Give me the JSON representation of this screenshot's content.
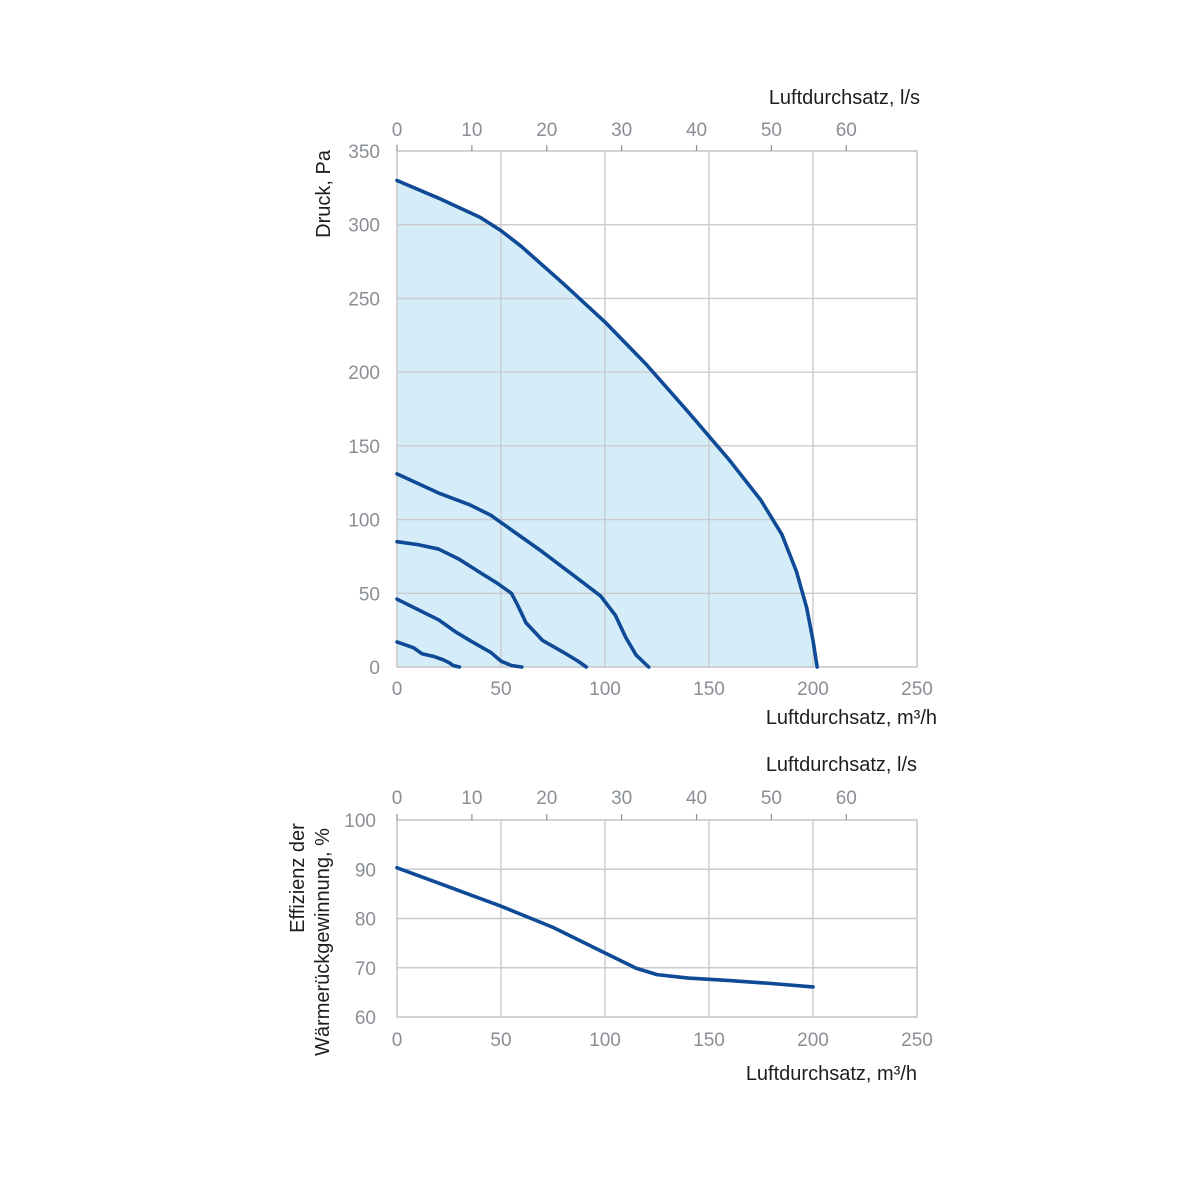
{
  "colors": {
    "curve": "#0f4a96",
    "area": "#d5edf9",
    "grid": "#c9cbce",
    "tick_text": "#8a8f96",
    "label_text": "#1e1e1e"
  },
  "chart_data": [
    {
      "type": "line",
      "title": "",
      "xlabel": "Luftdurchsatz, m³/h",
      "x2label": "Luftdurchsatz, l/s",
      "ylabel": "Druck, Pa",
      "xlim": [
        0,
        250
      ],
      "ylim": [
        0,
        350
      ],
      "x2lim": [
        0,
        69.444
      ],
      "xticks": [
        0,
        50,
        100,
        150,
        200,
        250
      ],
      "x2ticks": [
        0,
        10,
        20,
        30,
        40,
        50,
        60
      ],
      "yticks": [
        0,
        50,
        100,
        150,
        200,
        250,
        300,
        350
      ],
      "grid": true,
      "filled_series": 0,
      "series": [
        {
          "points": [
            [
              0,
              330
            ],
            [
              20,
              318
            ],
            [
              40,
              305
            ],
            [
              50,
              296
            ],
            [
              60,
              285
            ],
            [
              80,
              260
            ],
            [
              100,
              234
            ],
            [
              120,
              205
            ],
            [
              140,
              173
            ],
            [
              160,
              140
            ],
            [
              175,
              113
            ],
            [
              185,
              90
            ],
            [
              192,
              65
            ],
            [
              197,
              40
            ],
            [
              200,
              18
            ],
            [
              202,
              0
            ]
          ]
        },
        {
          "points": [
            [
              0,
              131
            ],
            [
              20,
              118
            ],
            [
              35,
              110
            ],
            [
              45,
              103
            ],
            [
              55,
              93
            ],
            [
              70,
              78
            ],
            [
              85,
              62
            ],
            [
              98,
              48
            ],
            [
              105,
              35
            ],
            [
              110,
              20
            ],
            [
              115,
              8
            ],
            [
              121,
              0
            ]
          ]
        },
        {
          "points": [
            [
              0,
              85
            ],
            [
              10,
              83
            ],
            [
              20,
              80
            ],
            [
              30,
              73
            ],
            [
              40,
              64
            ],
            [
              48,
              57
            ],
            [
              55,
              50
            ],
            [
              58,
              42
            ],
            [
              62,
              30
            ],
            [
              70,
              18
            ],
            [
              80,
              10
            ],
            [
              87,
              4
            ],
            [
              91,
              0
            ]
          ]
        },
        {
          "points": [
            [
              0,
              46
            ],
            [
              10,
              39
            ],
            [
              20,
              32
            ],
            [
              28,
              24
            ],
            [
              35,
              18
            ],
            [
              45,
              10
            ],
            [
              50,
              4
            ],
            [
              55,
              1
            ],
            [
              60,
              0
            ]
          ]
        },
        {
          "points": [
            [
              0,
              17
            ],
            [
              8,
              13
            ],
            [
              12,
              9
            ],
            [
              18,
              7
            ],
            [
              22,
              5
            ],
            [
              25,
              3
            ],
            [
              27,
              1
            ],
            [
              30,
              0
            ]
          ]
        }
      ]
    },
    {
      "type": "line",
      "title": "",
      "xlabel": "Luftdurchsatz, m³/h",
      "x2label": "Luftdurchsatz, l/s",
      "ylabel_lines": [
        "Effizienz der",
        "Wärmerückgewinnung, %"
      ],
      "xlim": [
        0,
        250
      ],
      "ylim": [
        60,
        100
      ],
      "x2lim": [
        0,
        69.444
      ],
      "xticks": [
        0,
        50,
        100,
        150,
        200,
        250
      ],
      "x2ticks": [
        0,
        10,
        20,
        30,
        40,
        50,
        60
      ],
      "yticks": [
        60,
        70,
        80,
        90,
        100
      ],
      "grid": true,
      "series": [
        {
          "points": [
            [
              0,
              90.3
            ],
            [
              25,
              86.4
            ],
            [
              50,
              82.5
            ],
            [
              75,
              78.2
            ],
            [
              100,
              73
            ],
            [
              115,
              69.9
            ],
            [
              125,
              68.6
            ],
            [
              140,
              67.9
            ],
            [
              160,
              67.4
            ],
            [
              180,
              66.8
            ],
            [
              200,
              66.1
            ]
          ]
        }
      ]
    }
  ]
}
